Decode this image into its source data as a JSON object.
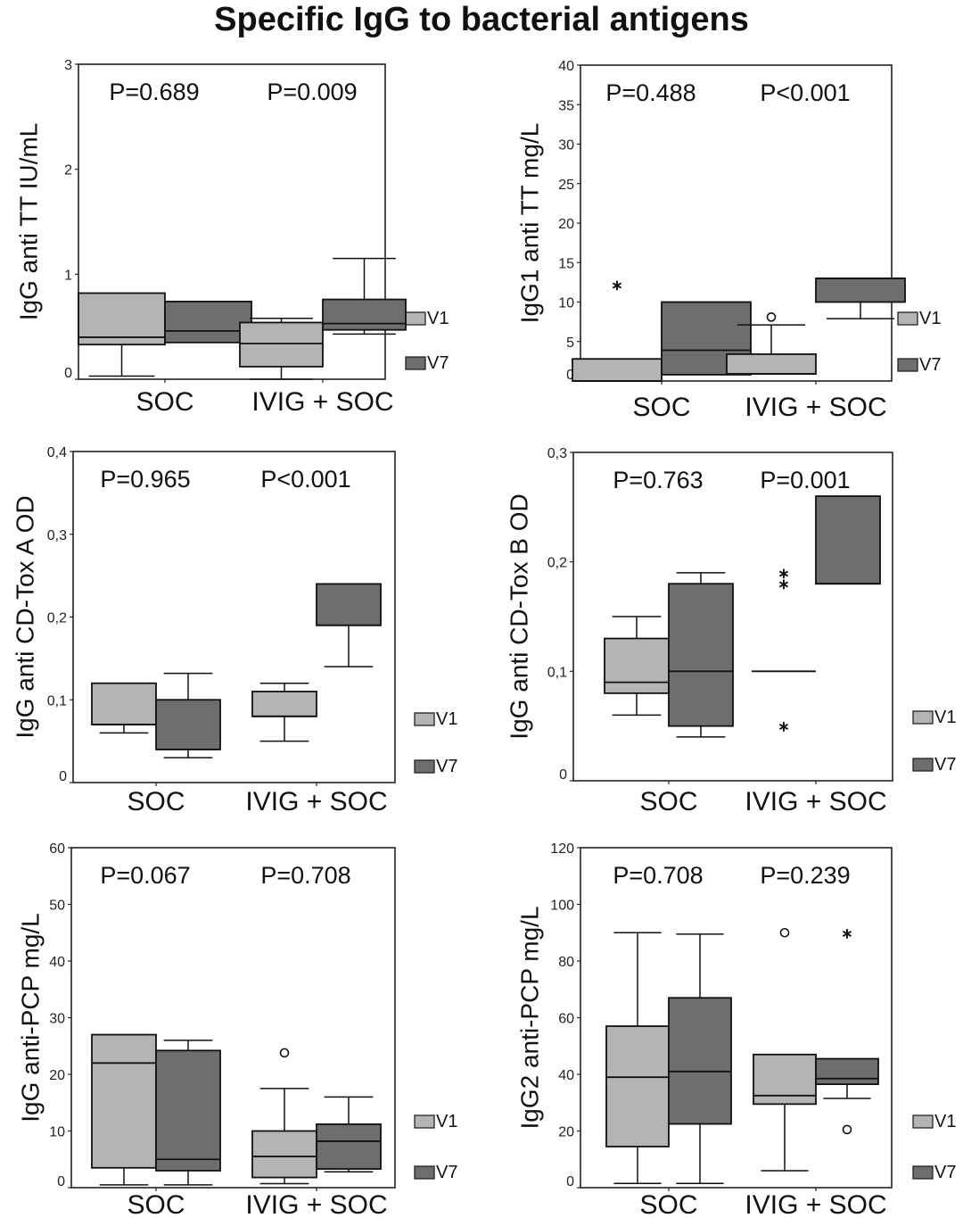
{
  "title": "Specific IgG to bacterial antigens",
  "colors": {
    "V1": "#b4b4b4",
    "V7": "#6e6e6e",
    "stroke": "#111111"
  },
  "chart_data": [
    {
      "type": "box",
      "ylabel": "IgG anti TT IU/mL",
      "ylim": [
        0,
        3
      ],
      "yticks": [
        "0",
        "1",
        "2",
        "3"
      ],
      "ytick_values": [
        0,
        1,
        2,
        3
      ],
      "categories": [
        "SOC",
        "IVIG + SOC"
      ],
      "pvalues": [
        "P=0.689",
        "P=0.009"
      ],
      "legend": [
        "V1",
        "V7"
      ],
      "boxes": [
        {
          "group": "SOC",
          "series": "V1",
          "min": 0.03,
          "q1": 0.33,
          "median": 0.4,
          "q3": 0.82,
          "max": 0.82,
          "outliers": []
        },
        {
          "group": "SOC",
          "series": "V7",
          "min": 0.35,
          "q1": 0.35,
          "median": 0.46,
          "q3": 0.74,
          "max": 0.74,
          "outliers": []
        },
        {
          "group": "IVIG + SOC",
          "series": "V1",
          "min": 0.0,
          "q1": 0.12,
          "median": 0.34,
          "q3": 0.54,
          "max": 0.58,
          "outliers": []
        },
        {
          "group": "IVIG + SOC",
          "series": "V7",
          "min": 0.43,
          "q1": 0.47,
          "median": 0.53,
          "q3": 0.76,
          "max": 1.15,
          "outliers": []
        }
      ]
    },
    {
      "type": "box",
      "ylabel": "IgG1 anti TT mg/L",
      "ylim": [
        0,
        40
      ],
      "yticks": [
        "0",
        "5",
        "10",
        "15",
        "20",
        "25",
        "30",
        "35",
        "40"
      ],
      "ytick_values": [
        0,
        5,
        10,
        15,
        20,
        25,
        30,
        35,
        40
      ],
      "categories": [
        "SOC",
        "IVIG + SOC"
      ],
      "pvalues": [
        "P=0.488",
        "P<0.001"
      ],
      "legend": [
        "V1",
        "V7"
      ],
      "boxes": [
        {
          "group": "SOC",
          "series": "V1",
          "min": 0,
          "q1": 0,
          "median": 0,
          "q3": 2.8,
          "max": 2.8,
          "outliers": [
            {
              "value": 12.2,
              "marker": "star"
            }
          ]
        },
        {
          "group": "SOC",
          "series": "V7",
          "min": 0.8,
          "q1": 0.8,
          "median": 3.9,
          "q3": 10.0,
          "max": 10.0,
          "outliers": []
        },
        {
          "group": "IVIG + SOC",
          "series": "V1",
          "min": 0.9,
          "q1": 0.9,
          "median": 0.9,
          "q3": 3.4,
          "max": 7.1,
          "outliers": [
            {
              "value": 8.1,
              "marker": "circle"
            }
          ]
        },
        {
          "group": "IVIG + SOC",
          "series": "V7",
          "min": 7.9,
          "q1": 10.0,
          "median": 13.0,
          "q3": 13.0,
          "max": 13.0,
          "outliers": []
        }
      ]
    },
    {
      "type": "box",
      "ylabel": "IgG anti CD-Tox A OD",
      "ylim": [
        0,
        0.4
      ],
      "yticks": [
        "0",
        "0,1",
        "0,2",
        "0,3",
        "0,4"
      ],
      "ytick_values": [
        0,
        0.1,
        0.2,
        0.3,
        0.4
      ],
      "categories": [
        "SOC",
        "IVIG + SOC"
      ],
      "pvalues": [
        "P=0.965",
        "P<0.001"
      ],
      "legend": [
        "V1",
        "V7"
      ],
      "boxes": [
        {
          "group": "SOC",
          "series": "V1",
          "min": 0.06,
          "q1": 0.07,
          "median": 0.07,
          "q3": 0.12,
          "max": 0.12,
          "outliers": []
        },
        {
          "group": "SOC",
          "series": "V7",
          "min": 0.03,
          "q1": 0.04,
          "median": 0.04,
          "q3": 0.1,
          "max": 0.132,
          "outliers": []
        },
        {
          "group": "IVIG + SOC",
          "series": "V1",
          "min": 0.05,
          "q1": 0.08,
          "median": 0.08,
          "q3": 0.11,
          "max": 0.12,
          "outliers": []
        },
        {
          "group": "IVIG + SOC",
          "series": "V7",
          "min": 0.14,
          "q1": 0.19,
          "median": 0.19,
          "q3": 0.24,
          "max": 0.24,
          "outliers": []
        }
      ]
    },
    {
      "type": "box",
      "ylabel": "IgG anti CD-Tox B OD",
      "ylim": [
        0,
        0.3
      ],
      "yticks": [
        "0",
        "0,1",
        "0,2",
        "0,3"
      ],
      "ytick_values": [
        0,
        0.1,
        0.2,
        0.3
      ],
      "categories": [
        "SOC",
        "IVIG + SOC"
      ],
      "pvalues": [
        "P=0.763",
        "P=0.001"
      ],
      "legend": [
        "V1",
        "V7"
      ],
      "boxes": [
        {
          "group": "SOC",
          "series": "V1",
          "min": 0.06,
          "q1": 0.08,
          "median": 0.09,
          "q3": 0.13,
          "max": 0.15,
          "outliers": []
        },
        {
          "group": "SOC",
          "series": "V7",
          "min": 0.04,
          "q1": 0.05,
          "median": 0.1,
          "q3": 0.18,
          "max": 0.19,
          "outliers": []
        },
        {
          "group": "IVIG + SOC",
          "series": "V1",
          "min": 0.1,
          "q1": 0.1,
          "median": 0.1,
          "q3": 0.1,
          "max": 0.1,
          "outliers": [
            {
              "value": 0.19,
              "marker": "star"
            },
            {
              "value": 0.18,
              "marker": "star"
            },
            {
              "value": 0.05,
              "marker": "star"
            }
          ]
        },
        {
          "group": "IVIG + SOC",
          "series": "V7",
          "min": 0.18,
          "q1": 0.18,
          "median": 0.18,
          "q3": 0.26,
          "max": 0.26,
          "outliers": []
        }
      ]
    },
    {
      "type": "box",
      "ylabel": "IgG anti-PCP mg/L",
      "ylim": [
        0,
        60
      ],
      "yticks": [
        "0",
        "10",
        "20",
        "30",
        "40",
        "50",
        "60"
      ],
      "ytick_values": [
        0,
        10,
        20,
        30,
        40,
        50,
        60
      ],
      "categories": [
        "SOC",
        "IVIG + SOC"
      ],
      "pvalues": [
        "P=0.067",
        "P=0.708"
      ],
      "legend": [
        "V1",
        "V7"
      ],
      "boxes": [
        {
          "group": "SOC",
          "series": "V1",
          "min": 0.5,
          "q1": 3.5,
          "median": 22,
          "q3": 27,
          "max": 27,
          "outliers": []
        },
        {
          "group": "SOC",
          "series": "V7",
          "min": 0.5,
          "q1": 3.0,
          "median": 5.0,
          "q3": 24.2,
          "max": 26,
          "outliers": []
        },
        {
          "group": "IVIG + SOC",
          "series": "V1",
          "min": 0.7,
          "q1": 1.8,
          "median": 5.5,
          "q3": 10,
          "max": 17.5,
          "outliers": [
            {
              "value": 23.8,
              "marker": "circle"
            }
          ]
        },
        {
          "group": "IVIG + SOC",
          "series": "V7",
          "min": 2.8,
          "q1": 3.3,
          "median": 8.2,
          "q3": 11.2,
          "max": 16,
          "outliers": []
        }
      ]
    },
    {
      "type": "box",
      "ylabel": "IgG2 anti-PCP mg/L",
      "ylim": [
        0,
        120
      ],
      "yticks": [
        "0",
        "20",
        "40",
        "60",
        "80",
        "100",
        "120"
      ],
      "ytick_values": [
        0,
        20,
        40,
        60,
        80,
        100,
        120
      ],
      "categories": [
        "SOC",
        "IVIG + SOC"
      ],
      "pvalues": [
        "P=0.708",
        "P=0.239"
      ],
      "legend": [
        "V1",
        "V7"
      ],
      "boxes": [
        {
          "group": "SOC",
          "series": "V1",
          "min": 1.5,
          "q1": 14.5,
          "median": 39,
          "q3": 57,
          "max": 90,
          "outliers": []
        },
        {
          "group": "SOC",
          "series": "V7",
          "min": 1.5,
          "q1": 22.5,
          "median": 41,
          "q3": 67,
          "max": 89.5,
          "outliers": []
        },
        {
          "group": "IVIG + SOC",
          "series": "V1",
          "min": 6,
          "q1": 29.5,
          "median": 32.5,
          "q3": 47,
          "max": 47,
          "outliers": [
            {
              "value": 90,
              "marker": "circle"
            }
          ]
        },
        {
          "group": "IVIG + SOC",
          "series": "V7",
          "min": 31.5,
          "q1": 36.5,
          "median": 38.5,
          "q3": 45.5,
          "max": 45.5,
          "outliers": [
            {
              "value": 90,
              "marker": "star"
            },
            {
              "value": 20.5,
              "marker": "circle"
            }
          ]
        }
      ]
    }
  ]
}
